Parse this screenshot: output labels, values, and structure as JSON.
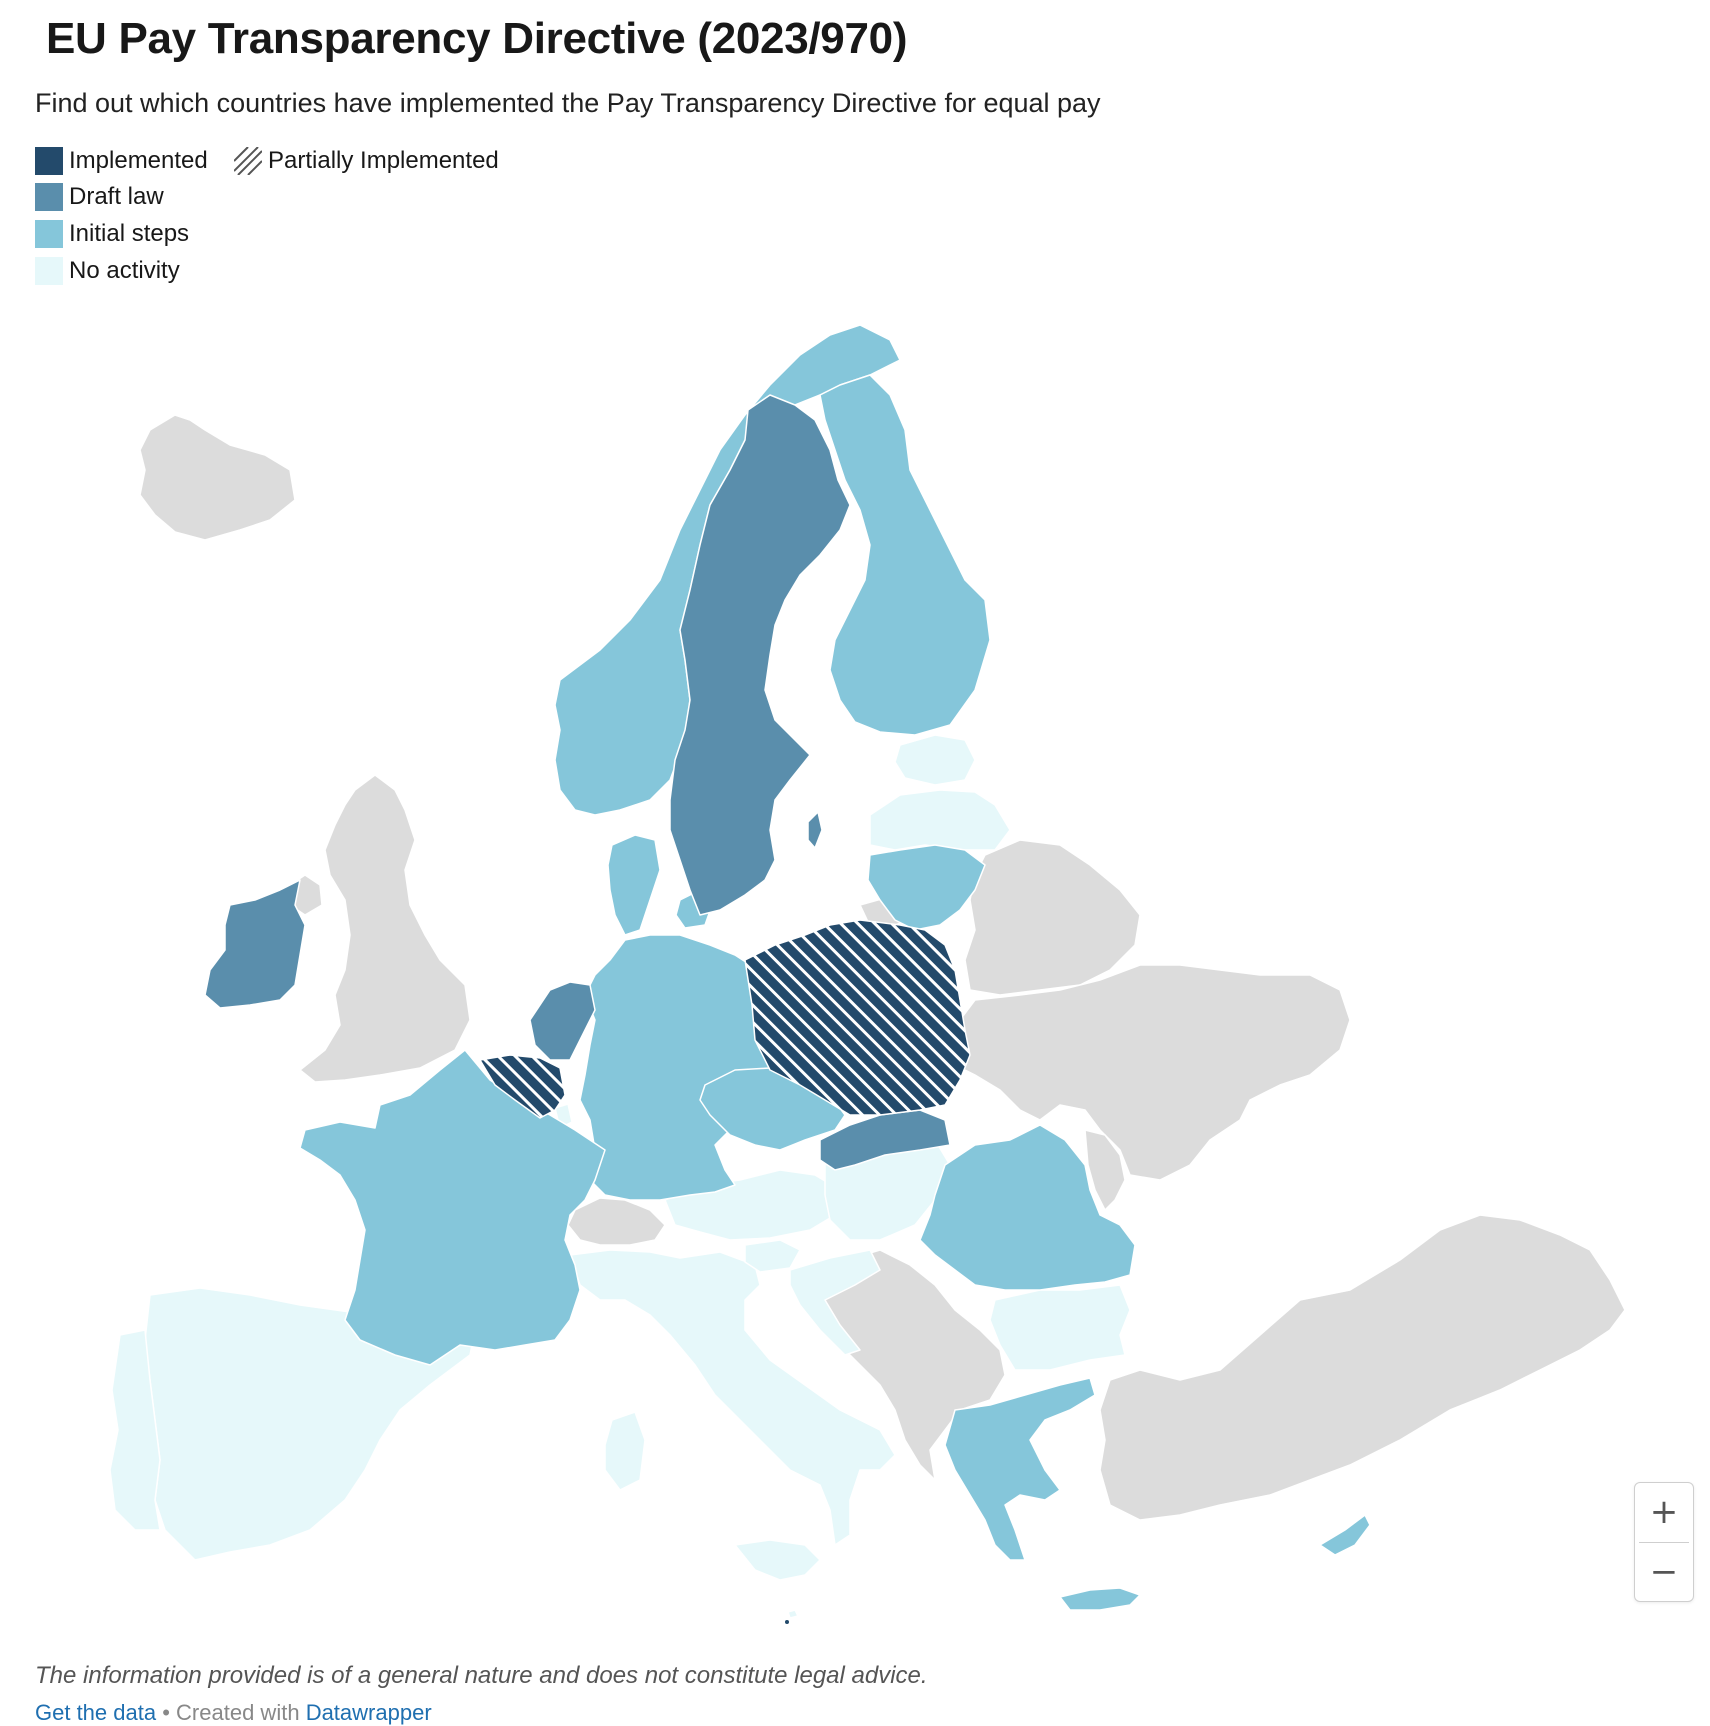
{
  "header": {
    "title": "EU Pay Transparency Directive (2023/970)",
    "subtitle": "Find out which countries have implemented the Pay Transparency Directive for equal pay"
  },
  "legend": {
    "implemented": "Implemented",
    "partially": "Partially Implemented",
    "draft": "Draft law",
    "initial": "Initial steps",
    "none": "No activity"
  },
  "colors": {
    "implemented": "#234a6b",
    "draft": "#5a8eac",
    "initial": "#85c6da",
    "none": "#e6f8fa",
    "non_eu": "#dcdcdc",
    "stripe": "#ffffff"
  },
  "zoom": {
    "plus": "+",
    "minus": "−"
  },
  "notes": "The information provided is of a general nature and does not constitute legal advice.",
  "footer": {
    "get_data": "Get the data",
    "separator": "•",
    "created_with": "Created with",
    "tool": "Datawrapper"
  },
  "map_data": {
    "type": "choropleth",
    "categories": [
      "Implemented",
      "Partially Implemented",
      "Draft law",
      "Initial steps",
      "No activity"
    ],
    "countries": [
      {
        "id": "poland",
        "status": "partially"
      },
      {
        "id": "belgium",
        "status": "partially"
      },
      {
        "id": "sweden",
        "status": "draft"
      },
      {
        "id": "ireland",
        "status": "draft"
      },
      {
        "id": "netherlands",
        "status": "draft"
      },
      {
        "id": "slovakia",
        "status": "draft"
      },
      {
        "id": "finland",
        "status": "initial"
      },
      {
        "id": "norway",
        "status": "initial"
      },
      {
        "id": "denmark",
        "status": "initial"
      },
      {
        "id": "germany",
        "status": "initial"
      },
      {
        "id": "france",
        "status": "initial"
      },
      {
        "id": "czechia",
        "status": "initial"
      },
      {
        "id": "lithuania",
        "status": "initial"
      },
      {
        "id": "romania",
        "status": "initial"
      },
      {
        "id": "greece",
        "status": "initial"
      },
      {
        "id": "cyprus",
        "status": "initial"
      },
      {
        "id": "estonia",
        "status": "none"
      },
      {
        "id": "latvia",
        "status": "none"
      },
      {
        "id": "spain",
        "status": "none"
      },
      {
        "id": "portugal",
        "status": "none"
      },
      {
        "id": "italy",
        "status": "none"
      },
      {
        "id": "austria",
        "status": "none"
      },
      {
        "id": "hungary",
        "status": "none"
      },
      {
        "id": "slovenia",
        "status": "none"
      },
      {
        "id": "croatia",
        "status": "none"
      },
      {
        "id": "bulgaria",
        "status": "none"
      },
      {
        "id": "luxembourg",
        "status": "none"
      },
      {
        "id": "malta",
        "status": "none"
      },
      {
        "id": "iceland",
        "status": "non_eu"
      },
      {
        "id": "united-kingdom",
        "status": "non_eu"
      },
      {
        "id": "switzerland",
        "status": "non_eu"
      },
      {
        "id": "belarus",
        "status": "non_eu"
      },
      {
        "id": "ukraine",
        "status": "non_eu"
      },
      {
        "id": "moldova",
        "status": "non_eu"
      },
      {
        "id": "turkey",
        "status": "non_eu"
      },
      {
        "id": "western-balkans",
        "status": "non_eu"
      },
      {
        "id": "russia-kaliningrad",
        "status": "non_eu"
      },
      {
        "id": "northern-ireland",
        "status": "non_eu"
      }
    ]
  }
}
